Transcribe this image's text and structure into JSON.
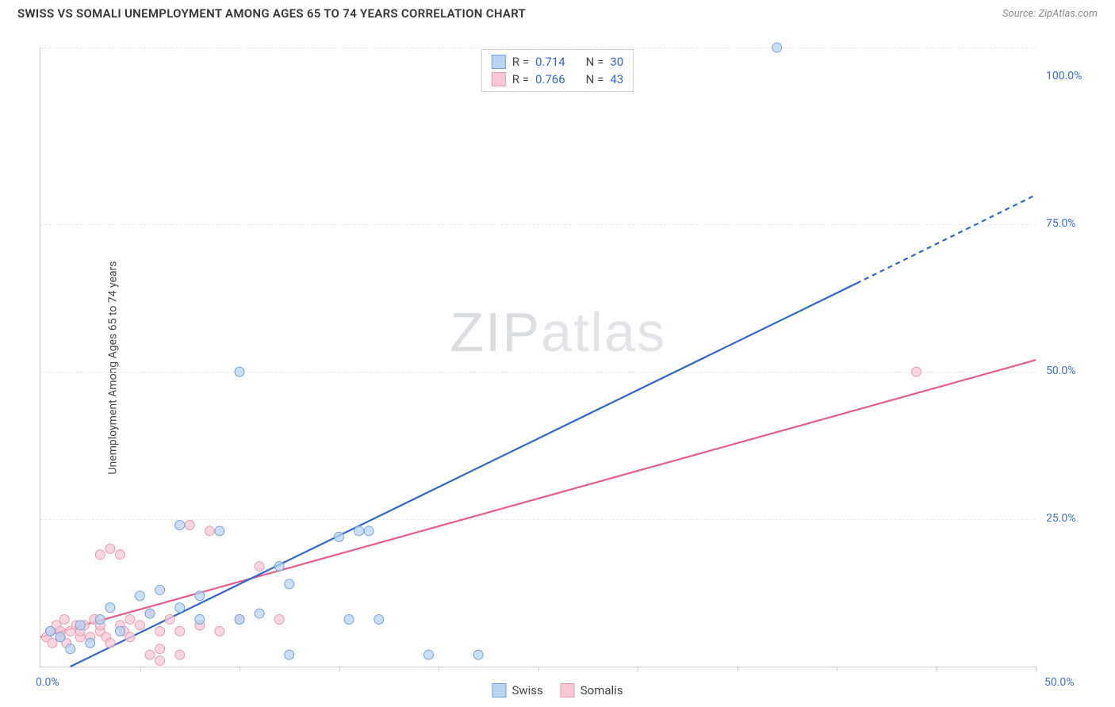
{
  "header": {
    "title": "SWISS VS SOMALI UNEMPLOYMENT AMONG AGES 65 TO 74 YEARS CORRELATION CHART",
    "source_prefix": "Source: ",
    "source_name": "ZipAtlas.com"
  },
  "y_axis_label": "Unemployment Among Ages 65 to 74 years",
  "watermark": {
    "zip": "ZIP",
    "atlas": "atlas"
  },
  "chart": {
    "type": "scatter",
    "xlim": [
      0,
      50
    ],
    "ylim": [
      0,
      105
    ],
    "x_ticks_minor": [
      5,
      10,
      15,
      20,
      25,
      30,
      35,
      40,
      45,
      50
    ],
    "y_gridlines": [
      25,
      50,
      75,
      105
    ],
    "x_labels": [
      {
        "v": 0,
        "t": "0.0%"
      },
      {
        "v": 50,
        "t": "50.0%"
      }
    ],
    "y_labels": [
      {
        "v": 25,
        "t": "25.0%"
      },
      {
        "v": 50,
        "t": "50.0%"
      },
      {
        "v": 75,
        "t": "75.0%"
      },
      {
        "v": 100,
        "t": "100.0%"
      }
    ],
    "series": {
      "swiss": {
        "label": "Swiss",
        "fill": "#b9d3f0",
        "stroke": "#6fa3e0",
        "line_color": "#2966d1",
        "trend_solid": {
          "x1": 1.5,
          "y1": 0,
          "x2": 41,
          "y2": 65
        },
        "trend_dashed": {
          "x1": 41,
          "y1": 65,
          "x2": 50,
          "y2": 80
        },
        "r": "0.714",
        "n": "30",
        "points": [
          [
            0.5,
            6
          ],
          [
            1,
            5
          ],
          [
            1.5,
            3
          ],
          [
            2,
            7
          ],
          [
            2.5,
            4
          ],
          [
            3,
            8
          ],
          [
            3.5,
            10
          ],
          [
            4,
            6
          ],
          [
            5,
            12
          ],
          [
            5.5,
            9
          ],
          [
            6,
            13
          ],
          [
            7,
            10
          ],
          [
            7,
            24
          ],
          [
            8,
            8
          ],
          [
            8,
            12
          ],
          [
            9,
            23
          ],
          [
            10,
            8
          ],
          [
            11,
            9
          ],
          [
            12,
            17
          ],
          [
            12.5,
            2
          ],
          [
            12.5,
            14
          ],
          [
            15.5,
            8
          ],
          [
            16,
            23
          ],
          [
            16.5,
            23
          ],
          [
            17,
            8
          ],
          [
            15,
            22
          ],
          [
            19.5,
            2
          ],
          [
            22,
            2
          ],
          [
            10,
            50
          ],
          [
            37,
            105
          ]
        ]
      },
      "somali": {
        "label": "Somalis",
        "fill": "#f6c9d5",
        "stroke": "#e89ab0",
        "line_color": "#e85a87",
        "trend_solid": {
          "x1": 0,
          "y1": 5,
          "x2": 50,
          "y2": 52
        },
        "trend_dashed": null,
        "r": "0.766",
        "n": "43",
        "points": [
          [
            0.3,
            5
          ],
          [
            0.5,
            6
          ],
          [
            0.6,
            4
          ],
          [
            0.8,
            7
          ],
          [
            1,
            5
          ],
          [
            1,
            6
          ],
          [
            1.2,
            8
          ],
          [
            1.3,
            4
          ],
          [
            1.5,
            6
          ],
          [
            1.8,
            7
          ],
          [
            2,
            5
          ],
          [
            2,
            6
          ],
          [
            2.2,
            7
          ],
          [
            2.5,
            5
          ],
          [
            2.7,
            8
          ],
          [
            3,
            6
          ],
          [
            3,
            7
          ],
          [
            3.3,
            5
          ],
          [
            3,
            19
          ],
          [
            3.5,
            20
          ],
          [
            3.5,
            4
          ],
          [
            4,
            7
          ],
          [
            4.2,
            6
          ],
          [
            4,
            19
          ],
          [
            4.5,
            8
          ],
          [
            4.5,
            5
          ],
          [
            5,
            7
          ],
          [
            5.5,
            9
          ],
          [
            5.5,
            2
          ],
          [
            6,
            6
          ],
          [
            6,
            3
          ],
          [
            6,
            1
          ],
          [
            6.5,
            8
          ],
          [
            7,
            2
          ],
          [
            7,
            6
          ],
          [
            7.5,
            24
          ],
          [
            8,
            7
          ],
          [
            8.5,
            23
          ],
          [
            9,
            6
          ],
          [
            10,
            8
          ],
          [
            11,
            17
          ],
          [
            12,
            8
          ],
          [
            44,
            50
          ]
        ]
      }
    },
    "marker_radius": 6,
    "marker_opacity": 0.75,
    "line_width": 2.2,
    "background_color": "#ffffff",
    "grid_color": "#e8e8e8"
  },
  "legend_top_labels": {
    "r_prefix": "R = ",
    "n_prefix": "N = "
  }
}
